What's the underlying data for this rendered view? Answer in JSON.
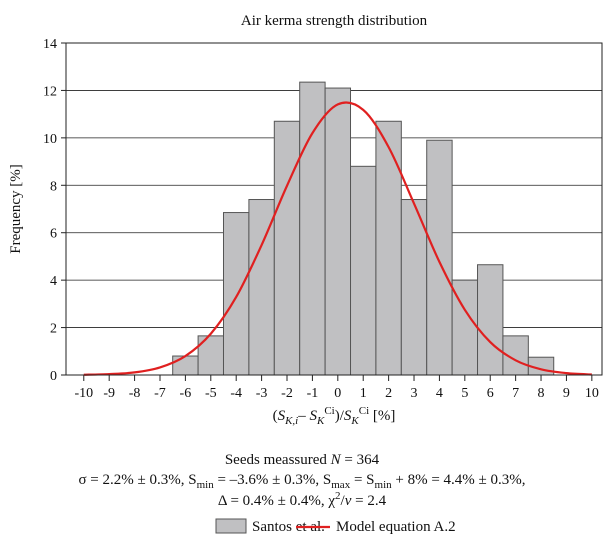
{
  "chart_data": {
    "type": "histogram",
    "title": "Air kerma strength distribution",
    "y_label": "Frequency [%]",
    "x_label": [
      {
        "text": "(",
        "format": ""
      },
      {
        "text": "S",
        "format": "italic"
      },
      {
        "text": "K,i",
        "format": "sub-italic"
      },
      {
        "text": "– ",
        "format": ""
      },
      {
        "text": "S",
        "format": "italic"
      },
      {
        "text": "K",
        "format": "sub-italic"
      },
      {
        "text": "Ci",
        "format": "sup"
      },
      {
        "text": ")/",
        "format": ""
      },
      {
        "text": "S",
        "format": "italic"
      },
      {
        "text": "K",
        "format": "sub-italic"
      },
      {
        "text": "Ci",
        "format": "sup"
      },
      {
        "text": " [%]",
        "format": ""
      }
    ],
    "bins": [
      -6.5,
      -5.5,
      -4.5,
      -3.5,
      -2.5,
      -1.5,
      -0.5,
      0.5,
      1.5,
      2.5,
      3.5,
      4.5,
      5.5,
      6.5,
      7.5,
      8.5
    ],
    "series": [
      {
        "name": "Santos et al.",
        "color": "#c0c0c2",
        "values": [
          0.8,
          1.65,
          6.85,
          7.4,
          10.7,
          12.35,
          12.1,
          8.8,
          10.7,
          7.4,
          9.9,
          4.0,
          4.65,
          1.65,
          0.75
        ]
      },
      {
        "name": "Model equation A.2",
        "color": "#e02020",
        "x": [
          -10,
          -9,
          -8,
          -7,
          -6,
          -5,
          -4,
          -3,
          -2,
          -1,
          0,
          1,
          2,
          3,
          4,
          5,
          6,
          7,
          8,
          9,
          10
        ],
        "values": [
          0.01,
          0.04,
          0.11,
          0.32,
          0.8,
          1.74,
          3.29,
          5.48,
          7.98,
          10.2,
          11.41,
          11.18,
          9.61,
          7.23,
          4.77,
          2.75,
          1.39,
          0.62,
          0.24,
          0.08,
          0.02
        ]
      }
    ],
    "xlim": [
      -10.7,
      10.4
    ],
    "ylim": [
      0,
      14
    ],
    "xticks": [
      -10,
      -9,
      -8,
      -7,
      -6,
      -5,
      -4,
      -3,
      -2,
      -1,
      0,
      1,
      2,
      3,
      4,
      5,
      6,
      7,
      8,
      9,
      10
    ],
    "yticks": [
      0,
      2,
      4,
      6,
      8,
      10,
      12,
      14
    ],
    "grid": true,
    "annotations": [
      [
        {
          "text": "Seeds meassured ",
          "format": ""
        },
        {
          "text": "N",
          "format": "italic"
        },
        {
          "text": " = 364",
          "format": ""
        }
      ],
      [
        {
          "text": "σ = 2.2% ± 0.3%, S",
          "format": ""
        },
        {
          "text": "min",
          "format": "sub"
        },
        {
          "text": " = –3.6% ± 0.3%, S",
          "format": ""
        },
        {
          "text": "max",
          "format": "sub"
        },
        {
          "text": " = S",
          "format": ""
        },
        {
          "text": "min",
          "format": "sub"
        },
        {
          "text": " + 8% = 4.4% ± 0.3%,",
          "format": ""
        }
      ],
      [
        {
          "text": "Δ = 0.4% ± 0.4%, χ",
          "format": ""
        },
        {
          "text": "2",
          "format": "sup"
        },
        {
          "text": "/",
          "format": ""
        },
        {
          "text": "v",
          "format": "italic"
        },
        {
          "text": " = 2.4",
          "format": ""
        }
      ]
    ],
    "legend": "bottom"
  }
}
